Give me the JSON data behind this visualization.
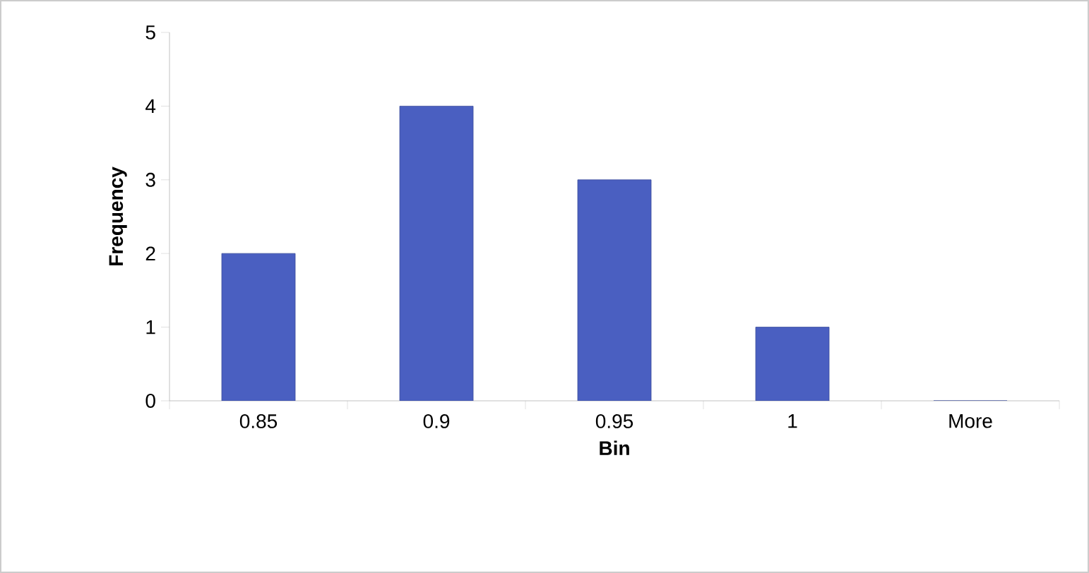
{
  "chart_data": {
    "type": "bar",
    "xlabel": "Bin",
    "ylabel": "Frequency",
    "categories": [
      "0.85",
      "0.9",
      "0.95",
      "1",
      "More"
    ],
    "values": [
      2,
      4,
      3,
      1,
      0
    ],
    "color": "#4a5fc1",
    "ylim": [
      0,
      5
    ],
    "yticks": [
      0,
      1,
      2,
      3,
      4,
      5
    ],
    "grid": false
  }
}
